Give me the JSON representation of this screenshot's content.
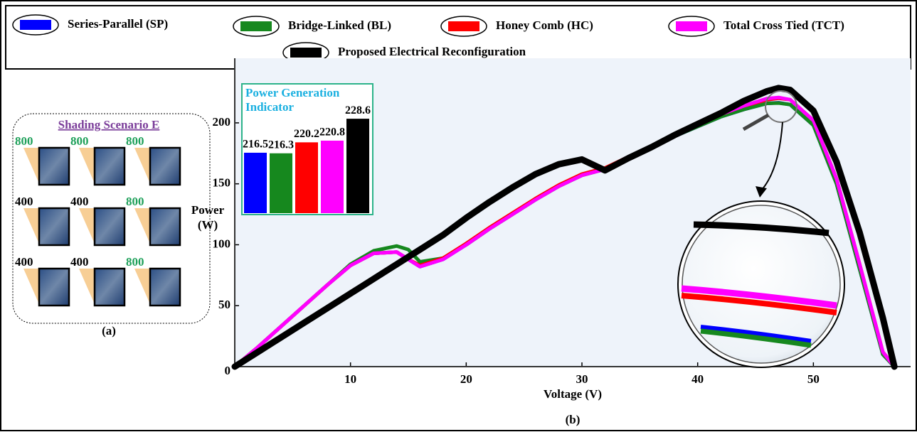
{
  "chart_data": [
    {
      "type": "line",
      "x_label": "Voltage (V)",
      "y_label": [
        "Power",
        "(W)"
      ],
      "panel_label": "(b)",
      "x": [
        0,
        2,
        4,
        6,
        8,
        10,
        12,
        14,
        15,
        16,
        18,
        20,
        22,
        24,
        26,
        28,
        30,
        32,
        34,
        36,
        38,
        40,
        42,
        44,
        46,
        47,
        48,
        50,
        52,
        54,
        56,
        57
      ],
      "xlim": [
        0,
        58.4
      ],
      "ylim": [
        0,
        253
      ],
      "xticks": [
        10,
        20,
        30,
        40,
        50
      ],
      "yticks": [
        0,
        50,
        100,
        150,
        200
      ],
      "series": [
        {
          "name": "Series-Parallel (SP)",
          "color": "#0000ff",
          "width": 5,
          "values": [
            0,
            16,
            33,
            50,
            67,
            83,
            93,
            94,
            88,
            82,
            88,
            100,
            113,
            125,
            137,
            148,
            157,
            162,
            171,
            180,
            189,
            197,
            205,
            211,
            216,
            216.5,
            215,
            198,
            150,
            80,
            10,
            0
          ]
        },
        {
          "name": "Bridge-Linked (BL)",
          "color": "#16881e",
          "width": 5,
          "values": [
            0,
            16,
            33,
            50,
            67,
            84,
            95,
            99,
            96,
            86,
            89,
            100,
            113,
            125,
            137,
            148,
            157,
            162,
            171,
            180,
            189,
            197,
            205,
            211,
            216,
            216.3,
            215,
            198,
            150,
            80,
            10,
            0
          ]
        },
        {
          "name": "Honey Comb (HC)",
          "color": "#ff0000",
          "width": 5,
          "values": [
            0,
            16,
            33,
            50,
            67,
            83,
            93,
            94,
            88,
            83,
            89,
            101,
            114,
            126,
            138,
            149,
            158,
            163,
            172,
            181,
            191,
            199,
            207,
            214,
            219,
            220.2,
            219,
            202,
            154,
            84,
            12,
            0
          ]
        },
        {
          "name": "Total Cross Tied (TCT)",
          "color": "#ff00ff",
          "width": 5,
          "values": [
            0,
            16,
            33,
            50,
            67,
            83,
            93,
            94,
            88,
            82,
            88,
            100,
            113,
            125,
            137,
            148,
            157,
            162,
            172,
            181,
            191,
            199,
            207,
            214,
            220,
            220.8,
            219,
            202,
            154,
            84,
            12,
            0
          ]
        },
        {
          "name": "Proposed Electrical Reconfiguration",
          "color": "#000000",
          "width": 9,
          "values": [
            0,
            12,
            24,
            36,
            48,
            60,
            72,
            84,
            90,
            96,
            108,
            122,
            135,
            147,
            158,
            166,
            170,
            161,
            171,
            180,
            190,
            199,
            208,
            218,
            226,
            228.6,
            227,
            210,
            168,
            110,
            40,
            0
          ]
        }
      ]
    },
    {
      "type": "bar",
      "title": [
        "Power Generation",
        "Indicator"
      ],
      "categories": [
        null,
        null,
        null,
        null,
        null
      ],
      "values": [
        216.5,
        216.3,
        220.2,
        220.8,
        228.6
      ],
      "colors": [
        "#0000ff",
        "#16881e",
        "#ff0000",
        "#ff00ff",
        "#000000"
      ],
      "ylim": [
        195,
        240
      ]
    }
  ],
  "shading_panel": {
    "title": "Shading Scenario E",
    "label": "(a)",
    "irradiance": [
      800,
      800,
      800,
      400,
      400,
      800,
      400,
      400,
      800
    ],
    "label_colors": [
      "#1fa05a",
      "#1fa05a",
      "#1fa05a",
      "#000000",
      "#000000",
      "#1fa05a",
      "#000000",
      "#000000",
      "#1fa05a"
    ]
  }
}
